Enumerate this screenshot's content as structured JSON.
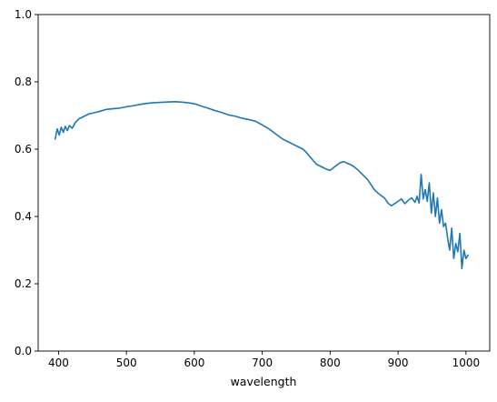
{
  "chart_data": {
    "type": "line",
    "title": "",
    "xlabel": "wavelength",
    "ylabel": "",
    "xlim": [
      370,
      1035
    ],
    "ylim": [
      0,
      1
    ],
    "x_ticks": [
      400,
      500,
      600,
      700,
      800,
      900,
      1000
    ],
    "y_ticks": [
      0.0,
      0.2,
      0.4,
      0.6,
      0.8,
      1.0
    ],
    "x_tick_labels": [
      "400",
      "500",
      "600",
      "700",
      "800",
      "900",
      "1000"
    ],
    "y_tick_labels": [
      "0.0",
      "0.2",
      "0.4",
      "0.6",
      "0.8",
      "1.0"
    ],
    "grid": false,
    "legend": "none",
    "series": [
      {
        "color": "#1f77b4",
        "x": [
          395,
          398,
          401,
          404,
          407,
          410,
          413,
          416,
          420,
          425,
          430,
          435,
          440,
          445,
          450,
          460,
          470,
          480,
          490,
          500,
          510,
          520,
          530,
          540,
          550,
          560,
          570,
          580,
          590,
          600,
          610,
          620,
          630,
          640,
          650,
          660,
          670,
          680,
          690,
          700,
          710,
          720,
          730,
          740,
          750,
          755,
          760,
          765,
          770,
          775,
          780,
          785,
          790,
          795,
          800,
          805,
          810,
          815,
          820,
          825,
          830,
          835,
          840,
          845,
          850,
          855,
          860,
          865,
          870,
          875,
          880,
          885,
          890,
          895,
          900,
          905,
          910,
          915,
          920,
          925,
          928,
          931,
          934,
          937,
          940,
          943,
          946,
          949,
          952,
          955,
          958,
          961,
          964,
          967,
          970,
          973,
          976,
          979,
          982,
          985,
          988,
          991,
          994,
          997,
          1000,
          1003
        ],
        "values": [
          0.63,
          0.66,
          0.642,
          0.665,
          0.65,
          0.668,
          0.655,
          0.67,
          0.662,
          0.68,
          0.69,
          0.695,
          0.7,
          0.705,
          0.707,
          0.712,
          0.718,
          0.72,
          0.722,
          0.726,
          0.729,
          0.733,
          0.736,
          0.738,
          0.739,
          0.74,
          0.741,
          0.74,
          0.738,
          0.735,
          0.728,
          0.722,
          0.715,
          0.709,
          0.702,
          0.698,
          0.692,
          0.688,
          0.683,
          0.672,
          0.66,
          0.645,
          0.63,
          0.62,
          0.61,
          0.605,
          0.6,
          0.59,
          0.578,
          0.566,
          0.555,
          0.55,
          0.545,
          0.54,
          0.537,
          0.545,
          0.553,
          0.56,
          0.563,
          0.558,
          0.554,
          0.548,
          0.54,
          0.53,
          0.52,
          0.51,
          0.495,
          0.48,
          0.47,
          0.462,
          0.455,
          0.44,
          0.432,
          0.438,
          0.445,
          0.452,
          0.438,
          0.448,
          0.455,
          0.442,
          0.46,
          0.44,
          0.525,
          0.452,
          0.48,
          0.445,
          0.5,
          0.41,
          0.47,
          0.4,
          0.455,
          0.38,
          0.42,
          0.37,
          0.38,
          0.335,
          0.3,
          0.365,
          0.275,
          0.32,
          0.295,
          0.35,
          0.245,
          0.3,
          0.275,
          0.285
        ]
      }
    ]
  }
}
